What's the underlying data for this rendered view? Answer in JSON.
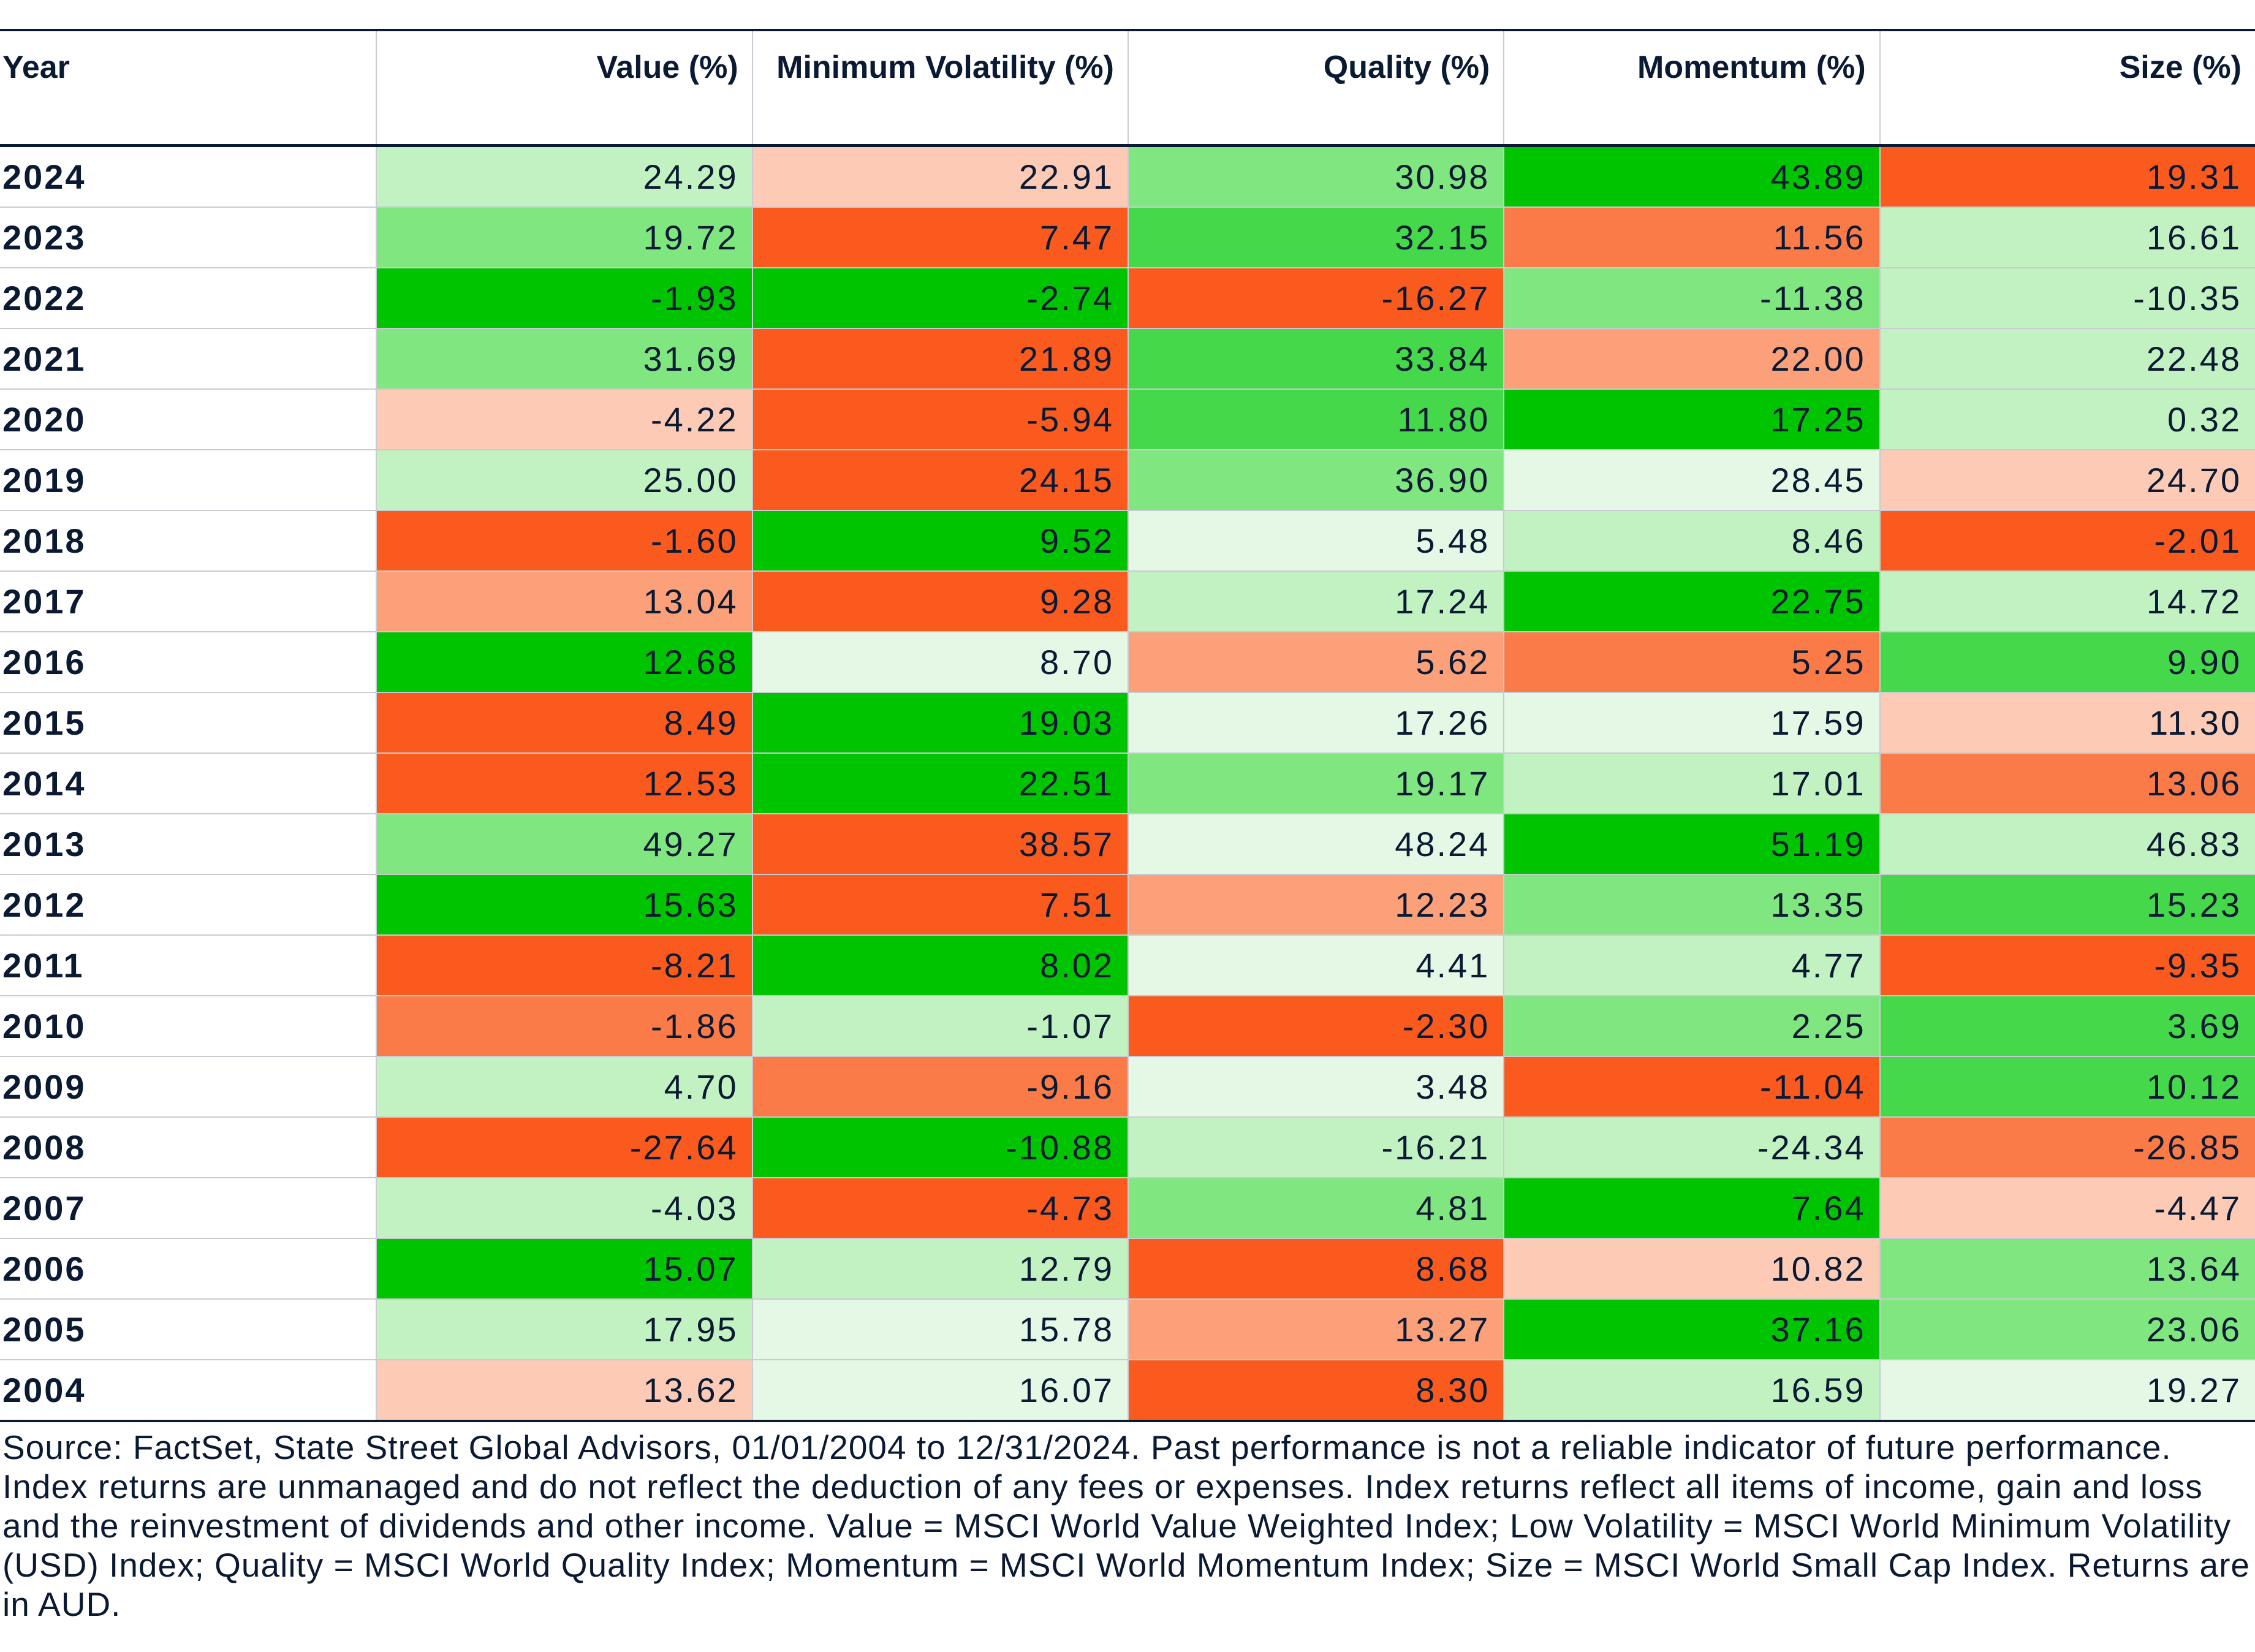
{
  "table": {
    "header": [
      "Year",
      "Value (%)",
      "Minimum Volatility (%)",
      "Quality (%)",
      "Momentum (%)",
      "Size (%)"
    ],
    "rows": [
      [
        "2024",
        "24.29",
        "22.91",
        "30.98",
        "43.89",
        "19.31"
      ],
      [
        "2023",
        "19.72",
        "7.47",
        "32.15",
        "11.56",
        "16.61"
      ],
      [
        "2022",
        "-1.93",
        "-2.74",
        "-16.27",
        "-11.38",
        "-10.35"
      ],
      [
        "2021",
        "31.69",
        "21.89",
        "33.84",
        "22.00",
        "22.48"
      ],
      [
        "2020",
        "-4.22",
        "-5.94",
        "11.80",
        "17.25",
        "0.32"
      ],
      [
        "2019",
        "25.00",
        "24.15",
        "36.90",
        "28.45",
        "24.70"
      ],
      [
        "2018",
        "-1.60",
        "9.52",
        "5.48",
        "8.46",
        "-2.01"
      ],
      [
        "2017",
        "13.04",
        "9.28",
        "17.24",
        "22.75",
        "14.72"
      ],
      [
        "2016",
        "12.68",
        "8.70",
        "5.62",
        "5.25",
        "9.90"
      ],
      [
        "2015",
        "8.49",
        "19.03",
        "17.26",
        "17.59",
        "11.30"
      ],
      [
        "2014",
        "12.53",
        "22.51",
        "19.17",
        "17.01",
        "13.06"
      ],
      [
        "2013",
        "49.27",
        "38.57",
        "48.24",
        "51.19",
        "46.83"
      ],
      [
        "2012",
        "15.63",
        "7.51",
        "12.23",
        "13.35",
        "15.23"
      ],
      [
        "2011",
        "-8.21",
        "8.02",
        "4.41",
        "4.77",
        "-9.35"
      ],
      [
        "2010",
        "-1.86",
        "-1.07",
        "-2.30",
        "2.25",
        "3.69"
      ],
      [
        "2009",
        "4.70",
        "-9.16",
        "3.48",
        "-11.04",
        "10.12"
      ],
      [
        "2008",
        "-27.64",
        "-10.88",
        "-16.21",
        "-24.34",
        "-26.85"
      ],
      [
        "2007",
        "-4.03",
        "-4.73",
        "4.81",
        "7.64",
        "-4.47"
      ],
      [
        "2006",
        "15.07",
        "12.79",
        "8.68",
        "10.82",
        "13.64"
      ],
      [
        "2005",
        "17.95",
        "15.78",
        "13.27",
        "37.16",
        "23.06"
      ],
      [
        "2004",
        "13.62",
        "16.07",
        "8.30",
        "16.59",
        "19.27"
      ]
    ],
    "colors": [
      [
        "#c2f2c2",
        "#fccab5",
        "#80e680",
        "#00c400",
        "#fa5a1e"
      ],
      [
        "#80e680",
        "#fa5a1e",
        "#44d84a",
        "#fa7a48",
        "#c2f2c2"
      ],
      [
        "#00c400",
        "#00c400",
        "#fa5a1e",
        "#80e680",
        "#c2f2c2"
      ],
      [
        "#80e680",
        "#fa5a1e",
        "#44d84a",
        "#fca07a",
        "#c2f2c2"
      ],
      [
        "#fccab5",
        "#fa5a1e",
        "#44d84a",
        "#00c400",
        "#c2f2c2"
      ],
      [
        "#c2f2c2",
        "#fa5a1e",
        "#80e680",
        "#e5f8e5",
        "#fccab5"
      ],
      [
        "#fa5a1e",
        "#00c400",
        "#e5f8e5",
        "#c2f2c2",
        "#fa5a1e"
      ],
      [
        "#fca07a",
        "#fa5a1e",
        "#c2f2c2",
        "#00c400",
        "#c2f2c2"
      ],
      [
        "#00c400",
        "#e5f8e5",
        "#fca07a",
        "#fa7a48",
        "#44d84a"
      ],
      [
        "#fa5a1e",
        "#00c400",
        "#e5f8e5",
        "#e5f8e5",
        "#fccab5"
      ],
      [
        "#fa5a1e",
        "#00c400",
        "#80e680",
        "#c2f2c2",
        "#fa7a48"
      ],
      [
        "#80e680",
        "#fa5a1e",
        "#e5f8e5",
        "#00c400",
        "#c2f2c2"
      ],
      [
        "#00c400",
        "#fa5a1e",
        "#fca07a",
        "#80e680",
        "#44d84a"
      ],
      [
        "#fa5a1e",
        "#00c400",
        "#e5f8e5",
        "#c2f2c2",
        "#fa5a1e"
      ],
      [
        "#fa7a48",
        "#c2f2c2",
        "#fa5a1e",
        "#80e680",
        "#44d84a"
      ],
      [
        "#c2f2c2",
        "#fa7a48",
        "#e5f8e5",
        "#fa5a1e",
        "#44d84a"
      ],
      [
        "#fa5a1e",
        "#00c400",
        "#c2f2c2",
        "#c2f2c2",
        "#fa7a48"
      ],
      [
        "#c2f2c2",
        "#fa5a1e",
        "#80e680",
        "#00c400",
        "#fccab5"
      ],
      [
        "#00c400",
        "#c2f2c2",
        "#fa5a1e",
        "#fccab5",
        "#80e680"
      ],
      [
        "#c2f2c2",
        "#e5f8e5",
        "#fca07a",
        "#00c400",
        "#80e680"
      ],
      [
        "#fccab5",
        "#e5f8e5",
        "#fa5a1e",
        "#c2f2c2",
        "#e5f8e5"
      ]
    ]
  },
  "footnote": "Source: FactSet, State Street Global Advisors, 01/01/2004 to 12/31/2024. Past performance is not a reliable indicator of future performance. Index returns are unmanaged and do not reflect the deduction of any fees or expenses. Index returns reflect all items of income, gain and loss and the reinvestment of dividends and other income. Value = MSCI World Value Weighted Index; Low Volatility = MSCI World Minimum Volatility (USD) Index; Quality = MSCI World Quality Index; Momentum = MSCI World Momentum Index; Size = MSCI World Small Cap Index. Returns are in AUD."
}
